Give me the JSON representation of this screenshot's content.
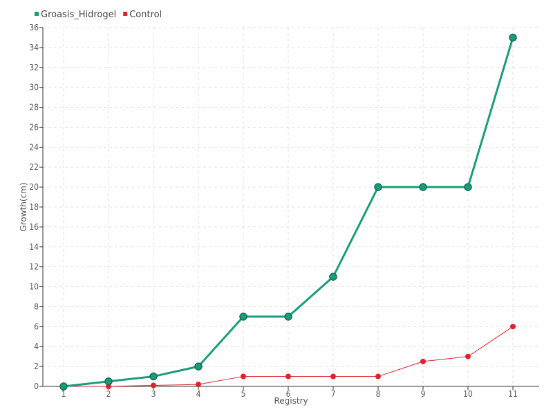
{
  "chart_data": {
    "type": "line",
    "xlabel": "Registry",
    "ylabel": "Growth(cm)",
    "categories": [
      "1",
      "2",
      "3",
      "4",
      "5",
      "6",
      "7",
      "8",
      "9",
      "10",
      "11"
    ],
    "ylim": [
      0,
      36
    ],
    "ytick_step": 2,
    "grid": true,
    "legend_position": "top-left",
    "series": [
      {
        "name": "Groasis_Hidrogel",
        "color": "#1a9c7a",
        "values": [
          0,
          0.5,
          1,
          2,
          7,
          7,
          11,
          20,
          20,
          20,
          35
        ]
      },
      {
        "name": "Control",
        "color": "#e0202a",
        "values": [
          0,
          0,
          0.1,
          0.2,
          1,
          1,
          1,
          1,
          2.5,
          3,
          6
        ]
      }
    ]
  }
}
